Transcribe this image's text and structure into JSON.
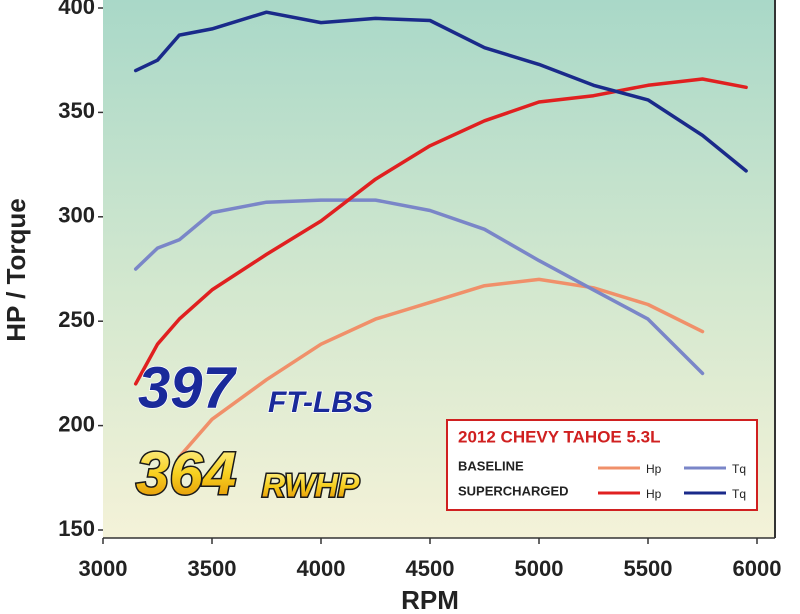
{
  "chart_data": {
    "type": "line",
    "x_label": "RPM",
    "y_label": "HP / Torque",
    "x": [
      3150,
      3250,
      3350,
      3500,
      3750,
      4000,
      4250,
      4500,
      4750,
      5000,
      5250,
      5500,
      5750,
      5950
    ],
    "series": [
      {
        "name": "BASELINE",
        "measure": "Hp",
        "color": "#f0906a",
        "values": [
          null,
          null,
          185,
          203,
          222,
          239,
          251,
          259,
          267,
          270,
          266,
          258,
          245,
          null
        ]
      },
      {
        "name": "BASELINE",
        "measure": "Tq",
        "color": "#7a86c8",
        "values": [
          275,
          285,
          289,
          302,
          307,
          308,
          308,
          303,
          294,
          279,
          265,
          251,
          225,
          null
        ]
      },
      {
        "name": "SUPERCHARGED",
        "measure": "Hp",
        "color": "#e02020",
        "values": [
          220,
          239,
          251,
          265,
          282,
          298,
          318,
          334,
          346,
          355,
          358,
          363,
          366,
          362
        ]
      },
      {
        "name": "SUPERCHARGED",
        "measure": "Tq",
        "color": "#1a2a8a",
        "values": [
          370,
          375,
          387,
          390,
          398,
          393,
          395,
          394,
          381,
          373,
          363,
          356,
          339,
          322
        ]
      }
    ],
    "xlim": [
      3000,
      6000
    ],
    "ylim": [
      150,
      400
    ],
    "xticks": [
      3000,
      3500,
      4000,
      4500,
      5000,
      5500,
      6000
    ],
    "yticks": [
      150,
      200,
      250,
      300,
      350,
      400
    ],
    "legend_title": "2012 CHEVY TAHOE 5.3L",
    "annotations": {
      "torque_peak": {
        "value": 397,
        "unit": "FT-LBS"
      },
      "hp_peak": {
        "value": 364,
        "unit": "RWHP"
      }
    }
  }
}
